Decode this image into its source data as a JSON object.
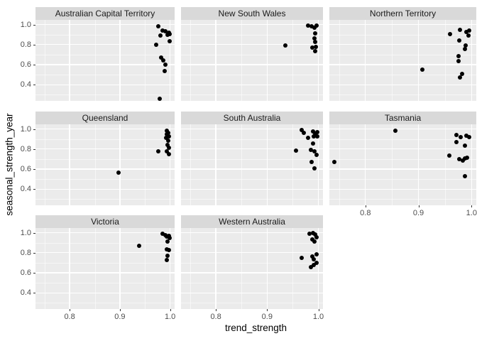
{
  "chart_data": {
    "type": "scatter",
    "title": "",
    "xlabel": "trend_strength",
    "ylabel": "seasonal_strength_year",
    "x_ticks": [
      0.8,
      0.9,
      1.0
    ],
    "y_ticks": [
      0.4,
      0.6,
      0.8,
      1.0
    ],
    "x_minor_ticks": [
      0.75,
      0.85,
      0.95
    ],
    "y_minor_ticks": [
      0.3,
      0.5,
      0.7,
      0.9
    ],
    "xlim": [
      0.732,
      1.009
    ],
    "ylim": [
      0.238,
      1.047
    ],
    "grid": "on",
    "legend_position": "none",
    "colors": {
      "point": "#000000",
      "panel_bg": "#EBEBEB",
      "strip_bg": "#D9D9D9",
      "grid_line": "#FFFFFF",
      "tick_label": "#4D4D4D",
      "axis_title": "#000000"
    },
    "facets": [
      {
        "label": "Australian Capital Territory",
        "points": [
          [
            0.977,
            0.98
          ],
          [
            0.985,
            0.94
          ],
          [
            0.991,
            0.935
          ],
          [
            0.998,
            0.92
          ],
          [
            0.999,
            0.903
          ],
          [
            0.995,
            0.895
          ],
          [
            0.981,
            0.892
          ],
          [
            0.999,
            0.833
          ],
          [
            0.972,
            0.797
          ],
          [
            0.982,
            0.67
          ],
          [
            0.987,
            0.64
          ],
          [
            0.991,
            0.598
          ],
          [
            0.989,
            0.534
          ],
          [
            0.979,
            0.26
          ]
        ]
      },
      {
        "label": "New South Wales",
        "points": [
          [
            0.936,
            0.795
          ],
          [
            0.98,
            0.993
          ],
          [
            0.987,
            0.981
          ],
          [
            0.993,
            0.97
          ],
          [
            0.997,
            0.99
          ],
          [
            0.994,
            0.91
          ],
          [
            0.992,
            0.864
          ],
          [
            0.994,
            0.828
          ],
          [
            0.988,
            0.769
          ],
          [
            0.995,
            0.781
          ],
          [
            0.994,
            0.734
          ]
        ]
      },
      {
        "label": "Northern Territory",
        "points": [
          [
            0.907,
            0.548
          ],
          [
            0.96,
            0.903
          ],
          [
            0.978,
            0.946
          ],
          [
            0.99,
            0.927
          ],
          [
            0.996,
            0.941
          ],
          [
            0.994,
            0.894
          ],
          [
            0.977,
            0.84
          ],
          [
            0.989,
            0.793
          ],
          [
            0.987,
            0.758
          ],
          [
            0.976,
            0.682
          ],
          [
            0.975,
            0.635
          ],
          [
            0.982,
            0.511
          ],
          [
            0.978,
            0.475
          ]
        ]
      },
      {
        "label": "Queensland",
        "points": [
          [
            0.993,
            0.98
          ],
          [
            0.996,
            0.96
          ],
          [
            0.993,
            0.945
          ],
          [
            0.998,
            0.93
          ],
          [
            0.992,
            0.915
          ],
          [
            0.996,
            0.885
          ],
          [
            0.995,
            0.845
          ],
          [
            0.998,
            0.815
          ],
          [
            0.994,
            0.78
          ],
          [
            0.998,
            0.75
          ],
          [
            0.977,
            0.78
          ],
          [
            0.897,
            0.565
          ]
        ]
      },
      {
        "label": "South Australia",
        "points": [
          [
            0.968,
            0.99
          ],
          [
            0.972,
            0.965
          ],
          [
            0.989,
            0.975
          ],
          [
            0.994,
            0.953
          ],
          [
            0.998,
            0.97
          ],
          [
            0.991,
            0.93
          ],
          [
            0.998,
            0.925
          ],
          [
            0.98,
            0.91
          ],
          [
            0.989,
            0.856
          ],
          [
            0.985,
            0.791
          ],
          [
            0.992,
            0.779
          ],
          [
            0.956,
            0.786
          ],
          [
            0.996,
            0.744
          ],
          [
            0.987,
            0.67
          ],
          [
            0.992,
            0.61
          ]
        ]
      },
      {
        "label": "Tasmania",
        "points": [
          [
            0.856,
            0.985
          ],
          [
            0.741,
            0.672
          ],
          [
            0.958,
            0.737
          ],
          [
            0.971,
            0.942
          ],
          [
            0.979,
            0.923
          ],
          [
            0.99,
            0.937
          ],
          [
            0.996,
            0.918
          ],
          [
            0.972,
            0.872
          ],
          [
            0.988,
            0.838
          ],
          [
            0.977,
            0.698
          ],
          [
            0.983,
            0.686
          ],
          [
            0.987,
            0.705
          ],
          [
            0.992,
            0.714
          ],
          [
            0.987,
            0.528
          ]
        ]
      },
      {
        "label": "Victoria",
        "points": [
          [
            0.938,
            0.872
          ],
          [
            0.985,
            0.991
          ],
          [
            0.991,
            0.977
          ],
          [
            0.994,
            0.961
          ],
          [
            0.998,
            0.971
          ],
          [
            0.999,
            0.945
          ],
          [
            0.995,
            0.909
          ],
          [
            0.993,
            0.831
          ],
          [
            0.997,
            0.824
          ],
          [
            0.995,
            0.772
          ],
          [
            0.994,
            0.726
          ]
        ]
      },
      {
        "label": "Western Australia",
        "points": [
          [
            0.983,
            0.991
          ],
          [
            0.989,
            0.995
          ],
          [
            0.994,
            0.984
          ],
          [
            0.997,
            0.954
          ],
          [
            0.988,
            0.932
          ],
          [
            0.993,
            0.909
          ],
          [
            0.968,
            0.749
          ],
          [
            0.988,
            0.767
          ],
          [
            0.996,
            0.786
          ],
          [
            0.991,
            0.733
          ],
          [
            0.997,
            0.703
          ],
          [
            0.985,
            0.658
          ],
          [
            0.991,
            0.676
          ]
        ]
      }
    ]
  }
}
